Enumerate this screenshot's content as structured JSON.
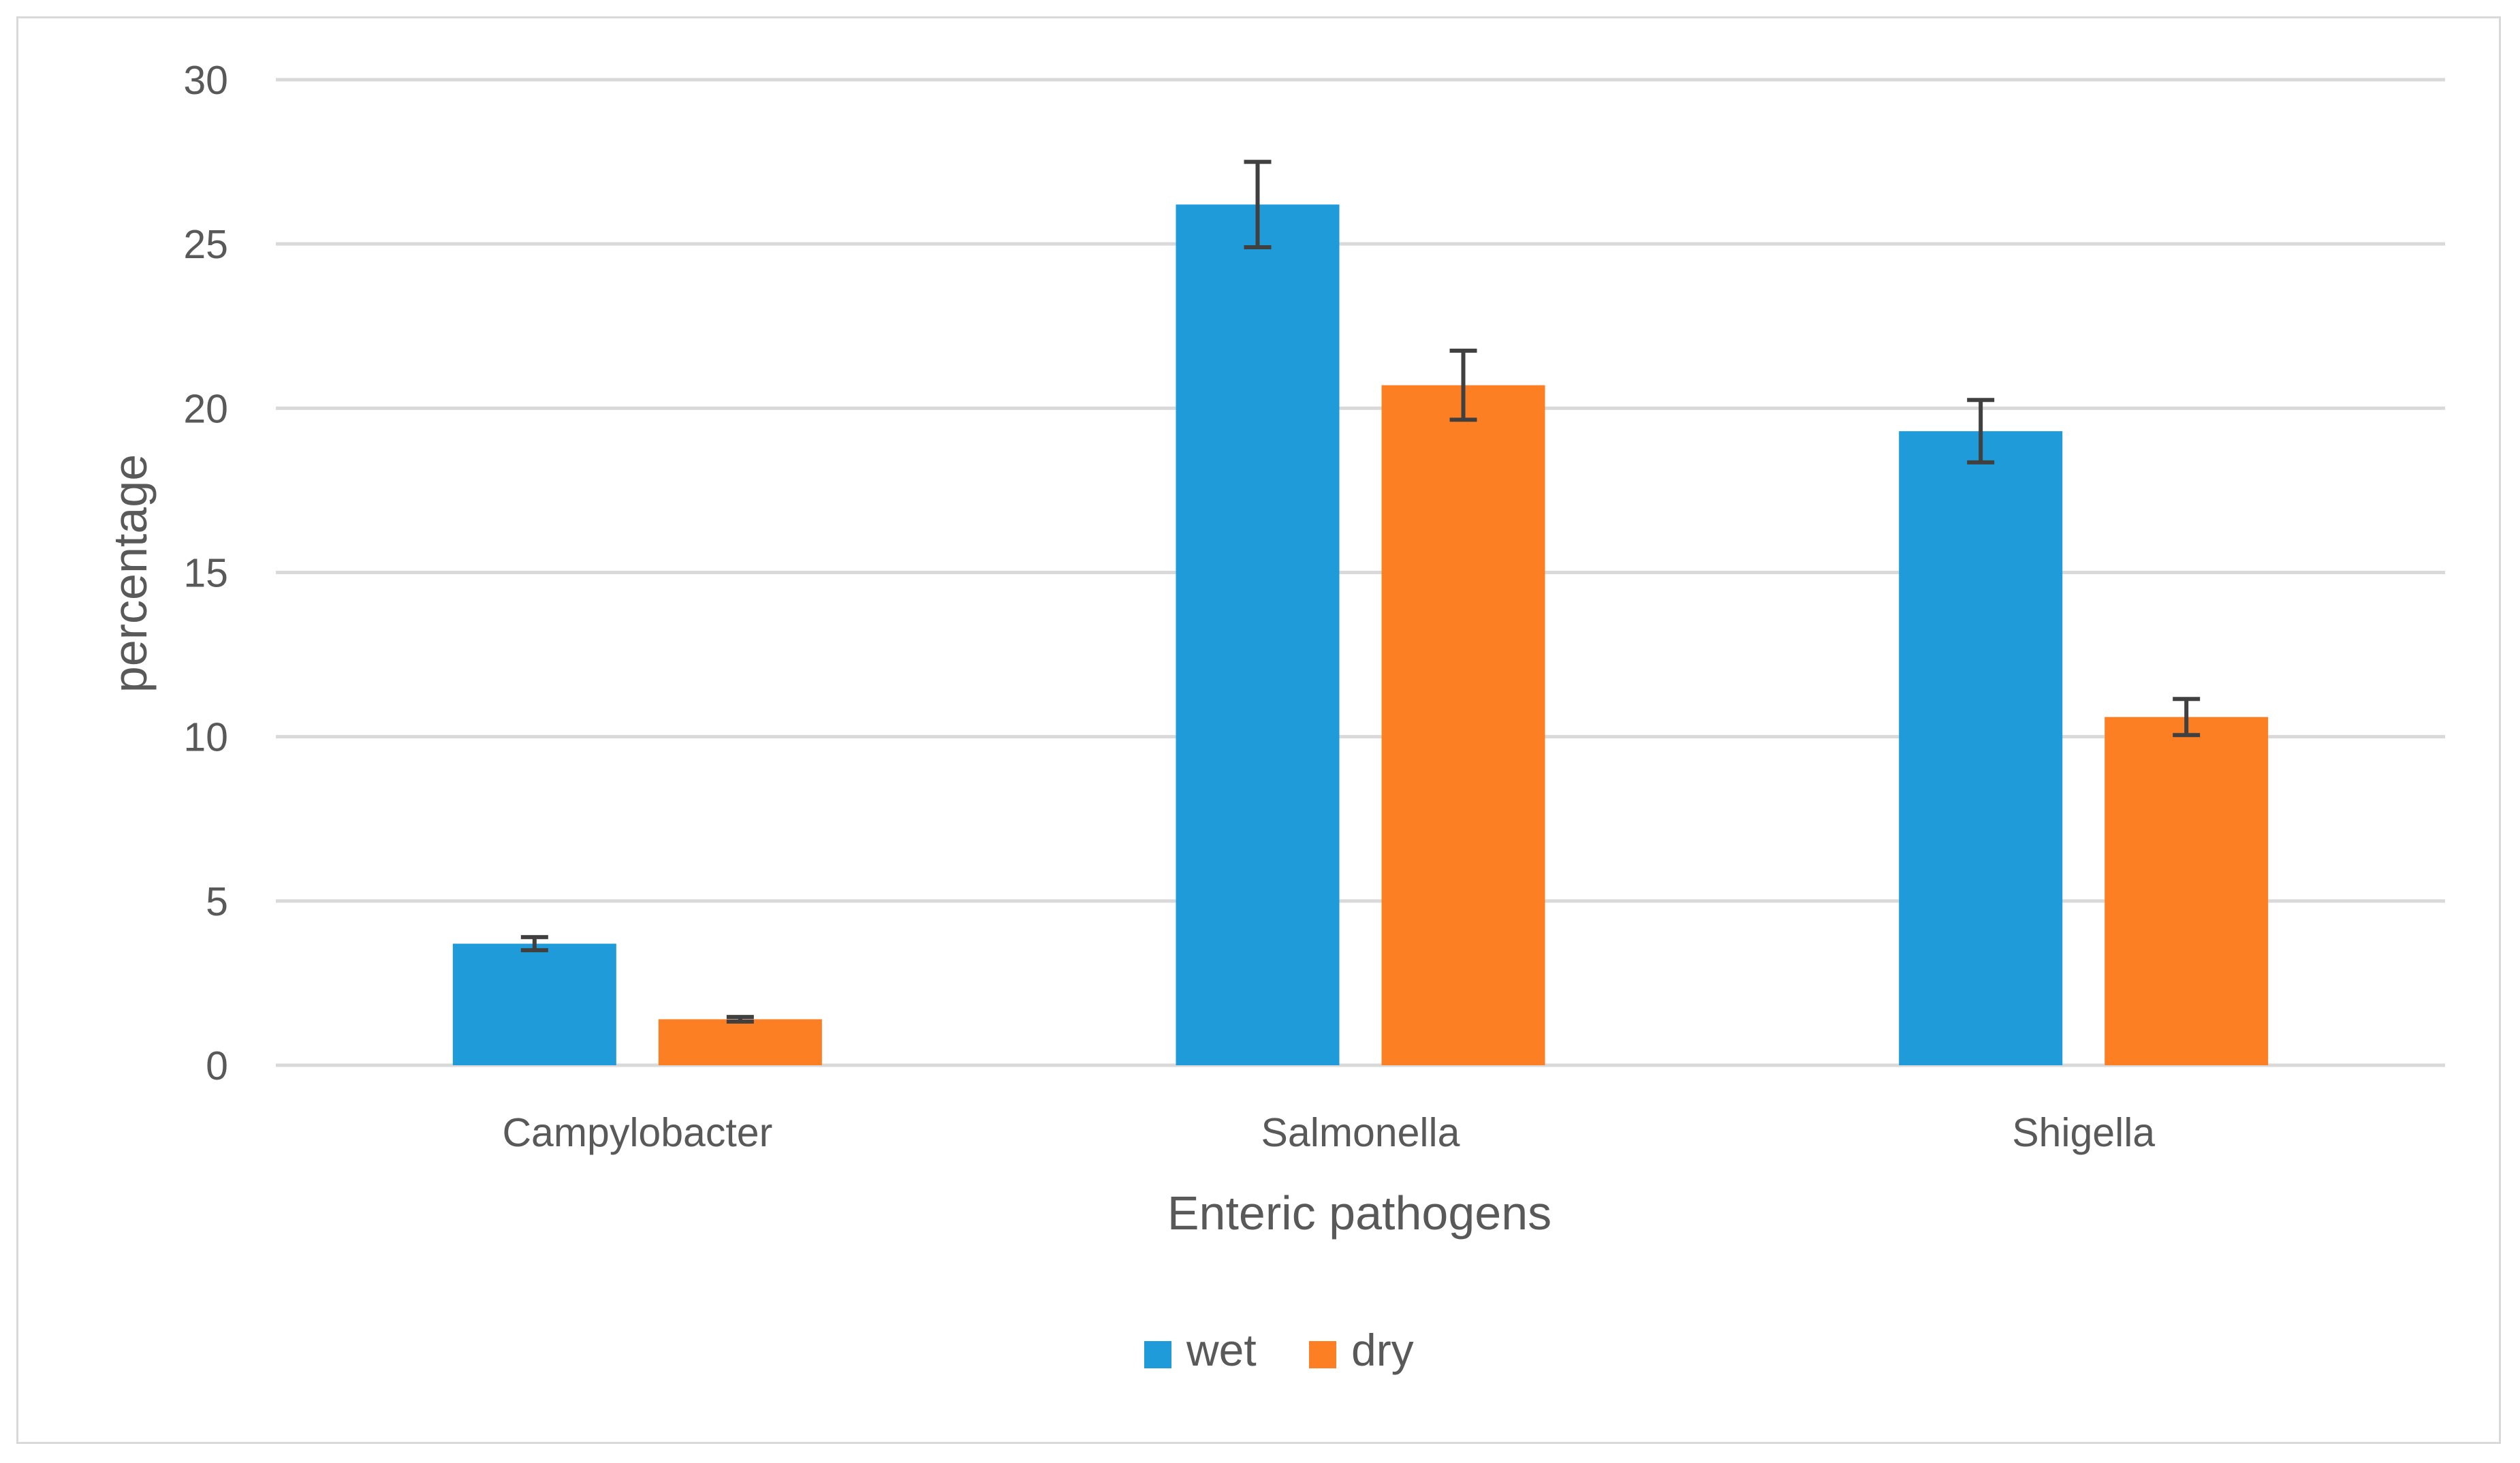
{
  "chart_data": {
    "type": "bar",
    "title": "",
    "xlabel": "Enteric pathogens",
    "ylabel": "percentage",
    "ylim": [
      0,
      30
    ],
    "yticks": [
      0,
      5,
      10,
      15,
      20,
      25,
      30
    ],
    "grid": true,
    "legend_position": "bottom-center",
    "categories": [
      "Campylobacter",
      "Salmonella",
      "Shigella"
    ],
    "series": [
      {
        "name": "wet",
        "color": "#1f9bd9",
        "values": [
          3.7,
          26.2,
          19.3
        ],
        "error": [
          0.2,
          1.3,
          0.95
        ]
      },
      {
        "name": "dry",
        "color": "#fd7f23",
        "values": [
          1.4,
          20.7,
          10.6
        ],
        "error": [
          0.07,
          1.05,
          0.55
        ]
      }
    ],
    "gridline_color": "#d9d9d9",
    "errorbar_color": "#404040"
  }
}
